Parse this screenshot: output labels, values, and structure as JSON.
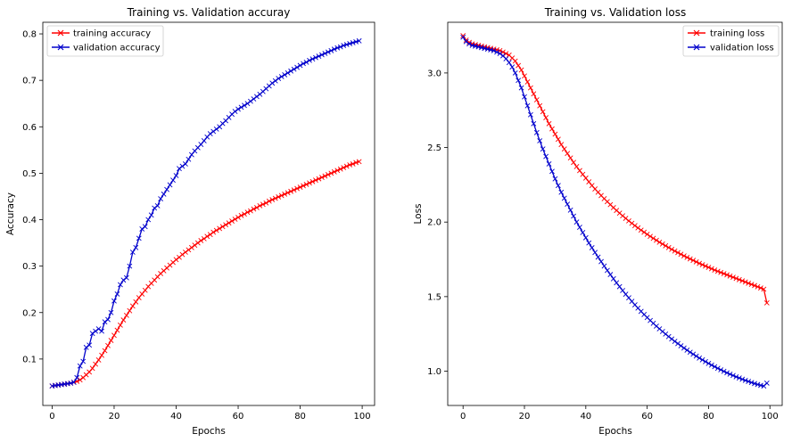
{
  "chart_data": [
    {
      "type": "line",
      "title": "Training vs. Validation accuray",
      "xlabel": "Epochs",
      "ylabel": "Accuracy",
      "xlim": [
        -3,
        104
      ],
      "ylim": [
        0.0,
        0.825
      ],
      "xticks": [
        "0",
        "20",
        "40",
        "60",
        "80",
        "100"
      ],
      "xtick_values": [
        0,
        20,
        40,
        60,
        80,
        100
      ],
      "yticks": [
        "0.1",
        "0.2",
        "0.3",
        "0.4",
        "0.5",
        "0.6",
        "0.7",
        "0.8"
      ],
      "ytick_values": [
        0.1,
        0.2,
        0.3,
        0.4,
        0.5,
        0.6,
        0.7,
        0.8
      ],
      "grid": false,
      "legend_position": "top-left",
      "series": [
        {
          "name": "training accuracy",
          "color": "#ff0000",
          "marker": "x",
          "x": [
            0,
            1,
            2,
            3,
            4,
            5,
            6,
            7,
            8,
            9,
            10,
            11,
            12,
            13,
            14,
            15,
            16,
            17,
            18,
            19,
            20,
            21,
            22,
            23,
            24,
            25,
            26,
            27,
            28,
            29,
            30,
            31,
            32,
            33,
            34,
            35,
            36,
            37,
            38,
            39,
            40,
            41,
            42,
            43,
            44,
            45,
            46,
            47,
            48,
            49,
            50,
            51,
            52,
            53,
            54,
            55,
            56,
            57,
            58,
            59,
            60,
            61,
            62,
            63,
            64,
            65,
            66,
            67,
            68,
            69,
            70,
            71,
            72,
            73,
            74,
            75,
            76,
            77,
            78,
            79,
            80,
            81,
            82,
            83,
            84,
            85,
            86,
            87,
            88,
            89,
            90,
            91,
            92,
            93,
            94,
            95,
            96,
            97,
            98,
            99
          ],
          "values": [
            0.042,
            0.043,
            0.044,
            0.045,
            0.046,
            0.047,
            0.048,
            0.05,
            0.052,
            0.055,
            0.06,
            0.066,
            0.072,
            0.08,
            0.089,
            0.098,
            0.108,
            0.118,
            0.129,
            0.14,
            0.151,
            0.162,
            0.173,
            0.184,
            0.194,
            0.204,
            0.214,
            0.223,
            0.232,
            0.24,
            0.248,
            0.256,
            0.263,
            0.27,
            0.277,
            0.284,
            0.29,
            0.296,
            0.302,
            0.308,
            0.314,
            0.319,
            0.325,
            0.33,
            0.335,
            0.34,
            0.345,
            0.35,
            0.355,
            0.359,
            0.364,
            0.368,
            0.373,
            0.377,
            0.381,
            0.385,
            0.389,
            0.393,
            0.397,
            0.401,
            0.405,
            0.409,
            0.412,
            0.416,
            0.419,
            0.423,
            0.426,
            0.43,
            0.433,
            0.436,
            0.44,
            0.443,
            0.446,
            0.449,
            0.452,
            0.455,
            0.458,
            0.461,
            0.464,
            0.467,
            0.47,
            0.473,
            0.476,
            0.479,
            0.482,
            0.485,
            0.488,
            0.491,
            0.494,
            0.497,
            0.5,
            0.503,
            0.506,
            0.509,
            0.512,
            0.515,
            0.518,
            0.52,
            0.523,
            0.525
          ]
        },
        {
          "name": "validation accuracy",
          "color": "#0000cc",
          "marker": "x",
          "x": [
            0,
            1,
            2,
            3,
            4,
            5,
            6,
            7,
            8,
            9,
            10,
            11,
            12,
            13,
            14,
            15,
            16,
            17,
            18,
            19,
            20,
            21,
            22,
            23,
            24,
            25,
            26,
            27,
            28,
            29,
            30,
            31,
            32,
            33,
            34,
            35,
            36,
            37,
            38,
            39,
            40,
            41,
            42,
            43,
            44,
            45,
            46,
            47,
            48,
            49,
            50,
            51,
            52,
            53,
            54,
            55,
            56,
            57,
            58,
            59,
            60,
            61,
            62,
            63,
            64,
            65,
            66,
            67,
            68,
            69,
            70,
            71,
            72,
            73,
            74,
            75,
            76,
            77,
            78,
            79,
            80,
            81,
            82,
            83,
            84,
            85,
            86,
            87,
            88,
            89,
            90,
            91,
            92,
            93,
            94,
            95,
            96,
            97,
            98,
            99
          ],
          "values": [
            0.042,
            0.043,
            0.044,
            0.045,
            0.046,
            0.047,
            0.048,
            0.05,
            0.06,
            0.085,
            0.095,
            0.125,
            0.13,
            0.155,
            0.16,
            0.165,
            0.16,
            0.18,
            0.185,
            0.2,
            0.225,
            0.24,
            0.26,
            0.27,
            0.275,
            0.3,
            0.33,
            0.34,
            0.36,
            0.38,
            0.385,
            0.4,
            0.41,
            0.425,
            0.43,
            0.445,
            0.455,
            0.465,
            0.475,
            0.485,
            0.495,
            0.51,
            0.515,
            0.52,
            0.53,
            0.54,
            0.548,
            0.555,
            0.562,
            0.57,
            0.578,
            0.585,
            0.59,
            0.595,
            0.6,
            0.607,
            0.613,
            0.62,
            0.627,
            0.633,
            0.638,
            0.642,
            0.646,
            0.65,
            0.655,
            0.66,
            0.665,
            0.67,
            0.676,
            0.682,
            0.688,
            0.694,
            0.699,
            0.704,
            0.708,
            0.712,
            0.716,
            0.72,
            0.724,
            0.728,
            0.732,
            0.736,
            0.739,
            0.743,
            0.746,
            0.749,
            0.752,
            0.755,
            0.758,
            0.761,
            0.764,
            0.767,
            0.77,
            0.772,
            0.775,
            0.777,
            0.779,
            0.781,
            0.783,
            0.785
          ]
        }
      ]
    },
    {
      "type": "line",
      "title": "Training vs. Validation loss",
      "xlabel": "Epochs",
      "ylabel": "Loss",
      "xlim": [
        -5,
        104
      ],
      "ylim": [
        0.77,
        3.34
      ],
      "xticks": [
        "0",
        "20",
        "40",
        "60",
        "80",
        "100"
      ],
      "xtick_values": [
        0,
        20,
        40,
        60,
        80,
        100
      ],
      "yticks": [
        "1.0",
        "1.5",
        "2.0",
        "2.5",
        "3.0"
      ],
      "ytick_values": [
        1.0,
        1.5,
        2.0,
        2.5,
        3.0
      ],
      "grid": false,
      "legend_position": "top-right",
      "series": [
        {
          "name": "training loss",
          "color": "#ff0000",
          "marker": "x",
          "x": [
            0,
            1,
            2,
            3,
            4,
            5,
            6,
            7,
            8,
            9,
            10,
            11,
            12,
            13,
            14,
            15,
            16,
            17,
            18,
            19,
            20,
            21,
            22,
            23,
            24,
            25,
            26,
            27,
            28,
            29,
            30,
            31,
            32,
            33,
            34,
            35,
            36,
            37,
            38,
            39,
            40,
            41,
            42,
            43,
            44,
            45,
            46,
            47,
            48,
            49,
            50,
            51,
            52,
            53,
            54,
            55,
            56,
            57,
            58,
            59,
            60,
            61,
            62,
            63,
            64,
            65,
            66,
            67,
            68,
            69,
            70,
            71,
            72,
            73,
            74,
            75,
            76,
            77,
            78,
            79,
            80,
            81,
            82,
            83,
            84,
            85,
            86,
            87,
            88,
            89,
            90,
            91,
            92,
            93,
            94,
            95,
            96,
            97,
            98,
            99
          ],
          "values": [
            3.25,
            3.22,
            3.205,
            3.195,
            3.19,
            3.185,
            3.18,
            3.175,
            3.17,
            3.165,
            3.16,
            3.155,
            3.15,
            3.14,
            3.13,
            3.12,
            3.1,
            3.08,
            3.05,
            3.02,
            2.98,
            2.94,
            2.9,
            2.86,
            2.82,
            2.78,
            2.74,
            2.7,
            2.66,
            2.625,
            2.59,
            2.555,
            2.52,
            2.49,
            2.46,
            2.43,
            2.4,
            2.372,
            2.345,
            2.32,
            2.295,
            2.27,
            2.245,
            2.222,
            2.2,
            2.178,
            2.157,
            2.137,
            2.117,
            2.097,
            2.078,
            2.06,
            2.042,
            2.025,
            2.008,
            1.992,
            1.976,
            1.961,
            1.946,
            1.932,
            1.918,
            1.904,
            1.891,
            1.878,
            1.865,
            1.853,
            1.841,
            1.829,
            1.817,
            1.806,
            1.795,
            1.784,
            1.773,
            1.763,
            1.753,
            1.743,
            1.733,
            1.723,
            1.714,
            1.705,
            1.696,
            1.687,
            1.678,
            1.67,
            1.662,
            1.654,
            1.646,
            1.638,
            1.63,
            1.622,
            1.614,
            1.606,
            1.598,
            1.59,
            1.582,
            1.574,
            1.566,
            1.558,
            1.55,
            1.458
          ]
        },
        {
          "name": "validation loss",
          "color": "#0000cc",
          "marker": "x",
          "x": [
            0,
            1,
            2,
            3,
            4,
            5,
            6,
            7,
            8,
            9,
            10,
            11,
            12,
            13,
            14,
            15,
            16,
            17,
            18,
            19,
            20,
            21,
            22,
            23,
            24,
            25,
            26,
            27,
            28,
            29,
            30,
            31,
            32,
            33,
            34,
            35,
            36,
            37,
            38,
            39,
            40,
            41,
            42,
            43,
            44,
            45,
            46,
            47,
            48,
            49,
            50,
            51,
            52,
            53,
            54,
            55,
            56,
            57,
            58,
            59,
            60,
            61,
            62,
            63,
            64,
            65,
            66,
            67,
            68,
            69,
            70,
            71,
            72,
            73,
            74,
            75,
            76,
            77,
            78,
            79,
            80,
            81,
            82,
            83,
            84,
            85,
            86,
            87,
            88,
            89,
            90,
            91,
            92,
            93,
            94,
            95,
            96,
            97,
            98,
            99
          ],
          "values": [
            3.24,
            3.21,
            3.195,
            3.185,
            3.18,
            3.175,
            3.17,
            3.165,
            3.16,
            3.155,
            3.15,
            3.14,
            3.13,
            3.115,
            3.095,
            3.07,
            3.04,
            3.0,
            2.95,
            2.9,
            2.84,
            2.78,
            2.72,
            2.66,
            2.6,
            2.545,
            2.49,
            2.44,
            2.39,
            2.34,
            2.29,
            2.245,
            2.2,
            2.16,
            2.12,
            2.08,
            2.04,
            2.0,
            1.965,
            1.93,
            1.895,
            1.86,
            1.828,
            1.796,
            1.765,
            1.735,
            1.705,
            1.676,
            1.648,
            1.62,
            1.593,
            1.567,
            1.541,
            1.516,
            1.492,
            1.468,
            1.445,
            1.423,
            1.401,
            1.38,
            1.36,
            1.34,
            1.321,
            1.302,
            1.284,
            1.266,
            1.249,
            1.232,
            1.216,
            1.2,
            1.185,
            1.17,
            1.155,
            1.141,
            1.127,
            1.114,
            1.101,
            1.088,
            1.076,
            1.064,
            1.052,
            1.041,
            1.03,
            1.019,
            1.009,
            0.999,
            0.989,
            0.98,
            0.971,
            0.962,
            0.954,
            0.946,
            0.938,
            0.931,
            0.924,
            0.917,
            0.911,
            0.905,
            0.9,
            0.92
          ]
        }
      ]
    }
  ]
}
